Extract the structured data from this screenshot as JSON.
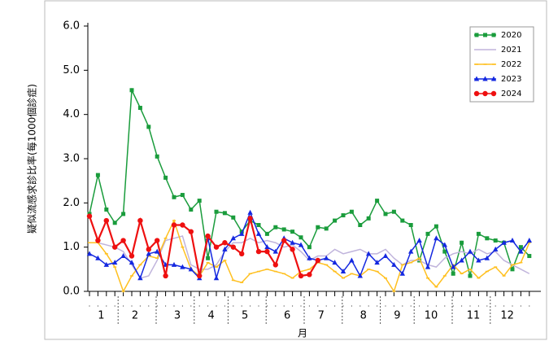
{
  "chart_data": {
    "type": "line",
    "x_label": "月",
    "y_label": "疑似流感求診比率(每1000個診症)",
    "categories": [
      null,
      "1",
      null,
      null,
      null,
      "2",
      null,
      null,
      null,
      null,
      "3",
      null,
      null,
      null,
      "4",
      null,
      null,
      null,
      "5",
      null,
      null,
      null,
      null,
      "6",
      null,
      null,
      null,
      "7",
      null,
      null,
      null,
      null,
      "8",
      null,
      null,
      null,
      "9",
      null,
      null,
      null,
      "10",
      null,
      null,
      null,
      null,
      "11",
      null,
      null,
      null,
      "12",
      null,
      null,
      null
    ],
    "ylim": [
      0,
      6
    ],
    "yticks": [
      {
        "value": 0,
        "label": "0.0"
      },
      {
        "value": 1,
        "label": "1.0"
      },
      {
        "value": 2,
        "label": "2.0"
      },
      {
        "value": 3,
        "label": "3.0"
      },
      {
        "value": 4,
        "label": "4.0"
      },
      {
        "value": 5,
        "label": "5.0"
      },
      {
        "value": 6,
        "label": "6.0"
      }
    ],
    "legend": "upper right",
    "series": [
      {
        "name": "2020",
        "color": "#1a9c3c",
        "marker": "square",
        "values": [
          1.75,
          2.63,
          1.85,
          1.55,
          1.75,
          4.55,
          4.15,
          3.72,
          3.05,
          2.57,
          2.13,
          2.18,
          1.85,
          2.05,
          0.75,
          1.8,
          1.77,
          1.67,
          1.35,
          1.6,
          1.5,
          1.3,
          1.45,
          1.4,
          1.35,
          1.22,
          1.0,
          1.45,
          1.42,
          1.6,
          1.72,
          1.8,
          1.5,
          1.65,
          2.05,
          1.75,
          1.8,
          1.6,
          1.5,
          0.7,
          1.3,
          1.47,
          0.9,
          0.4,
          1.1,
          0.35,
          1.3,
          1.2,
          1.15,
          1.1,
          0.5,
          1.0,
          0.8
        ]
      },
      {
        "name": "2021",
        "color": "#c0b4dc",
        "marker": "none",
        "values": [
          1.1,
          1.1,
          1.05,
          1.0,
          0.9,
          0.6,
          0.3,
          0.35,
          0.7,
          1.15,
          1.2,
          1.25,
          0.6,
          0.5,
          0.5,
          0.6,
          0.9,
          1.1,
          1.1,
          1.2,
          1.1,
          1.15,
          1.1,
          1.0,
          1.05,
          0.9,
          0.7,
          0.8,
          0.8,
          0.95,
          0.85,
          0.9,
          0.95,
          0.85,
          0.85,
          0.95,
          0.75,
          0.6,
          0.7,
          0.7,
          0.6,
          0.55,
          0.75,
          0.85,
          0.9,
          0.85,
          0.95,
          0.85,
          0.9,
          0.7,
          0.6,
          0.5,
          0.4
        ]
      },
      {
        "name": "2022",
        "color": "#ffc020",
        "marker": "tick",
        "values": [
          1.1,
          1.1,
          0.85,
          0.55,
          0.0,
          0.35,
          0.6,
          0.8,
          0.75,
          1.2,
          1.6,
          1.0,
          0.5,
          0.35,
          0.65,
          0.55,
          0.7,
          0.25,
          0.2,
          0.4,
          0.45,
          0.5,
          0.45,
          0.4,
          0.3,
          0.45,
          0.5,
          0.65,
          0.6,
          0.45,
          0.3,
          0.4,
          0.35,
          0.5,
          0.45,
          0.3,
          0.0,
          0.6,
          0.65,
          0.75,
          0.3,
          0.1,
          0.35,
          0.6,
          0.4,
          0.5,
          0.3,
          0.45,
          0.55,
          0.35,
          0.6,
          0.65,
          1.1
        ]
      },
      {
        "name": "2023",
        "color": "#1428e0",
        "marker": "triangle",
        "values": [
          0.85,
          0.75,
          0.6,
          0.65,
          0.8,
          0.65,
          0.3,
          0.85,
          0.9,
          0.6,
          0.6,
          0.55,
          0.5,
          0.3,
          1.2,
          0.3,
          0.95,
          1.2,
          1.3,
          1.78,
          1.3,
          1.0,
          0.9,
          1.2,
          1.1,
          1.05,
          0.75,
          0.7,
          0.75,
          0.65,
          0.45,
          0.7,
          0.35,
          0.85,
          0.65,
          0.8,
          0.6,
          0.4,
          0.9,
          1.15,
          0.55,
          1.2,
          1.05,
          0.55,
          0.7,
          0.9,
          0.7,
          0.75,
          0.95,
          1.1,
          1.15,
          0.9,
          1.15
        ]
      },
      {
        "name": "2024",
        "color": "#ee1010",
        "marker": "circle",
        "values": [
          1.7,
          1.15,
          1.6,
          1.0,
          1.15,
          0.8,
          1.6,
          0.95,
          1.15,
          0.35,
          1.5,
          1.5,
          1.35,
          0.35,
          1.25,
          1.0,
          1.1,
          1.0,
          0.85,
          1.65,
          0.9,
          0.9,
          0.6,
          1.15,
          0.95,
          0.35,
          0.38,
          0.7,
          null,
          null,
          null,
          null,
          null,
          null,
          null,
          null,
          null,
          null,
          null,
          null,
          null,
          null,
          null,
          null,
          null,
          null,
          null,
          null,
          null,
          null,
          null,
          null,
          null
        ]
      }
    ]
  }
}
